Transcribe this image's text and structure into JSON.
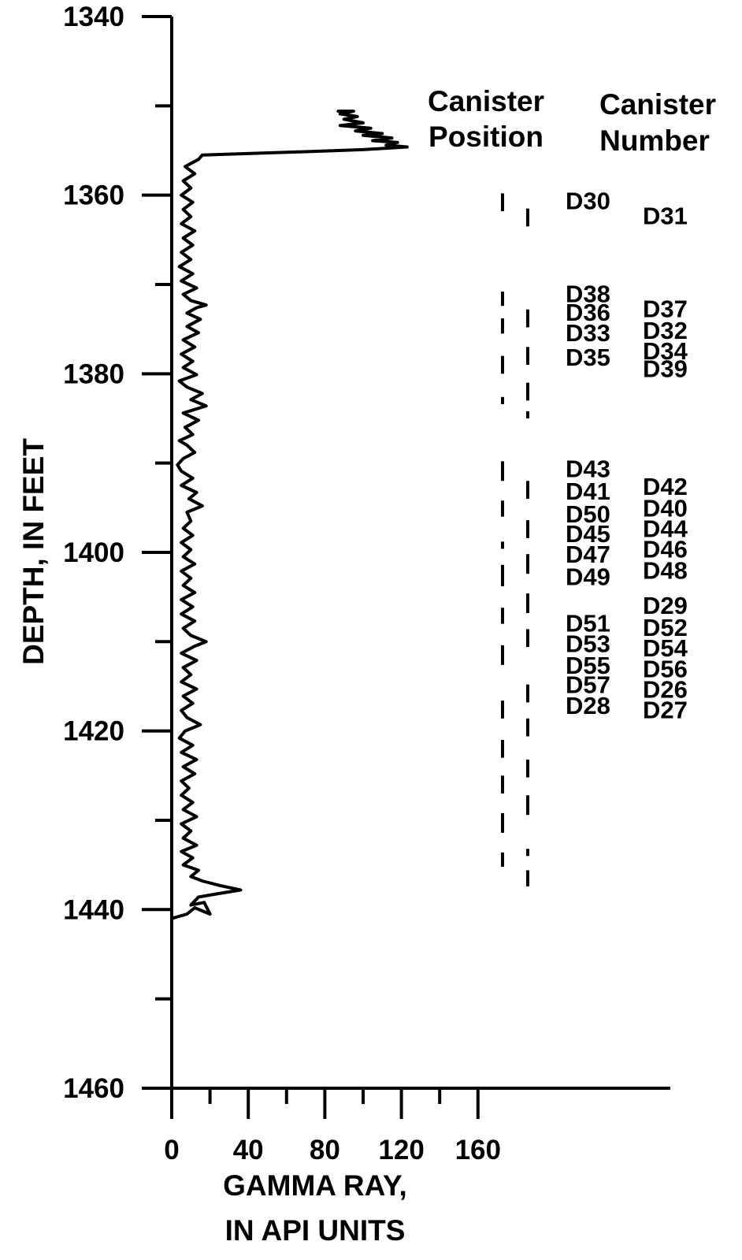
{
  "chart_data": {
    "type": "line",
    "title": "",
    "xlabel_lines": [
      "GAMMA RAY,",
      "IN API UNITS"
    ],
    "ylabel": "DEPTH, IN FEET",
    "column_titles": {
      "position": [
        "Canister",
        "Position"
      ],
      "number": [
        "Canister",
        "Number"
      ]
    },
    "xlim": [
      0,
      260
    ],
    "ylim": [
      1340,
      1460
    ],
    "y_inverted": true,
    "x_tick_labels": [
      0,
      40,
      80,
      120,
      160
    ],
    "x_minor_ticks": [
      20,
      60,
      100,
      140
    ],
    "y_tick_labels": [
      1340,
      1360,
      1380,
      1400,
      1420,
      1440,
      1460
    ],
    "y_minor_ticks": [
      1350,
      1370,
      1390,
      1410,
      1430,
      1450
    ],
    "gamma_ray_series": {
      "name": "",
      "points": [
        [
          0,
          1441
        ],
        [
          8,
          1440.5
        ],
        [
          12,
          1439.8
        ],
        [
          20,
          1440.5
        ],
        [
          17,
          1439.2
        ],
        [
          10,
          1439.5
        ],
        [
          14,
          1438.6
        ],
        [
          22,
          1438.3
        ],
        [
          36,
          1437.8
        ],
        [
          25,
          1437.3
        ],
        [
          16,
          1436.8
        ],
        [
          10,
          1436.3
        ],
        [
          14,
          1435.6
        ],
        [
          6,
          1435
        ],
        [
          11,
          1434.2
        ],
        [
          5,
          1433.5
        ],
        [
          13,
          1432.8
        ],
        [
          6,
          1432
        ],
        [
          10,
          1431.2
        ],
        [
          5,
          1430.4
        ],
        [
          13,
          1429.6
        ],
        [
          6,
          1428.8
        ],
        [
          11,
          1428
        ],
        [
          5,
          1427.2
        ],
        [
          9,
          1426.4
        ],
        [
          5,
          1425.6
        ],
        [
          12,
          1424.8
        ],
        [
          6,
          1424
        ],
        [
          13,
          1423.2
        ],
        [
          5,
          1422.4
        ],
        [
          11,
          1421.6
        ],
        [
          4,
          1420.8
        ],
        [
          7,
          1420
        ],
        [
          15,
          1419.3
        ],
        [
          8,
          1418.5
        ],
        [
          5,
          1417.7
        ],
        [
          11,
          1416.9
        ],
        [
          6,
          1416.1
        ],
        [
          13,
          1415.3
        ],
        [
          5,
          1414.5
        ],
        [
          10,
          1413.7
        ],
        [
          6,
          1412.9
        ],
        [
          13,
          1412.1
        ],
        [
          5,
          1411.3
        ],
        [
          12,
          1410.5
        ],
        [
          18,
          1410
        ],
        [
          10,
          1409.3
        ],
        [
          6,
          1408.5
        ],
        [
          12,
          1407.7
        ],
        [
          5,
          1406.9
        ],
        [
          11,
          1406.1
        ],
        [
          5,
          1405.3
        ],
        [
          12,
          1404.5
        ],
        [
          6,
          1403.7
        ],
        [
          10,
          1402.9
        ],
        [
          5,
          1402.1
        ],
        [
          12,
          1401.3
        ],
        [
          6,
          1400.5
        ],
        [
          10,
          1399.7
        ],
        [
          5,
          1398.9
        ],
        [
          11,
          1398.1
        ],
        [
          6,
          1397.3
        ],
        [
          10,
          1396.5
        ],
        [
          8,
          1395.5
        ],
        [
          16,
          1394.8
        ],
        [
          9,
          1394
        ],
        [
          13,
          1393.3
        ],
        [
          5,
          1392.5
        ],
        [
          11,
          1391.7
        ],
        [
          5,
          1390.9
        ],
        [
          3,
          1390.2
        ],
        [
          6,
          1389.5
        ],
        [
          12,
          1388.8
        ],
        [
          8,
          1388
        ],
        [
          4,
          1387.5
        ],
        [
          11,
          1386.8
        ],
        [
          7,
          1386
        ],
        [
          14,
          1385.2
        ],
        [
          6,
          1384.4
        ],
        [
          18,
          1383.6
        ],
        [
          10,
          1382.9
        ],
        [
          16,
          1382.2
        ],
        [
          8,
          1381.5
        ],
        [
          4,
          1380.8
        ],
        [
          13,
          1380.1
        ],
        [
          6,
          1379.3
        ],
        [
          11,
          1378.6
        ],
        [
          5,
          1377.8
        ],
        [
          12,
          1377
        ],
        [
          6,
          1376.2
        ],
        [
          14,
          1375.4
        ],
        [
          8,
          1374.7
        ],
        [
          15,
          1373.9
        ],
        [
          8,
          1373.2
        ],
        [
          13,
          1372.6
        ],
        [
          18,
          1372.3
        ],
        [
          10,
          1371.8
        ],
        [
          6,
          1371.1
        ],
        [
          13,
          1370.4
        ],
        [
          5,
          1369.6
        ],
        [
          11,
          1368.8
        ],
        [
          4,
          1368
        ],
        [
          10,
          1367.2
        ],
        [
          5,
          1366.4
        ],
        [
          11,
          1365.6
        ],
        [
          6,
          1364.8
        ],
        [
          12,
          1364
        ],
        [
          5,
          1363.2
        ],
        [
          10,
          1362.4
        ],
        [
          6,
          1361.6
        ],
        [
          11,
          1360.8
        ],
        [
          5,
          1360
        ],
        [
          10,
          1359.2
        ],
        [
          6,
          1358.4
        ],
        [
          12,
          1357.6
        ],
        [
          7,
          1356.8
        ],
        [
          14,
          1356
        ],
        [
          16,
          1355.5
        ],
        [
          60,
          1355.2
        ],
        [
          100,
          1354.9
        ],
        [
          123,
          1354.6
        ],
        [
          112,
          1354.4
        ],
        [
          118,
          1354.1
        ],
        [
          105,
          1353.9
        ],
        [
          115,
          1353.6
        ],
        [
          100,
          1353.3
        ],
        [
          110,
          1353.1
        ],
        [
          96,
          1352.8
        ],
        [
          104,
          1352.5
        ],
        [
          88,
          1352.2
        ],
        [
          100,
          1351.9
        ],
        [
          90,
          1351.5
        ],
        [
          97,
          1351.2
        ],
        [
          88,
          1350.9
        ],
        [
          95,
          1350.6
        ],
        [
          87,
          1350.6
        ]
      ]
    },
    "canister_position_left": [
      [
        1359.8,
        1361.8
      ],
      [
        1370.8,
        1372.4
      ],
      [
        1373.8,
        1375.5
      ],
      [
        1378,
        1380
      ],
      [
        1382.6,
        1383.4
      ],
      [
        1389.8,
        1392
      ],
      [
        1394.2,
        1396
      ],
      [
        1398.8,
        1399.6
      ],
      [
        1401.4,
        1403.8
      ],
      [
        1406.2,
        1408
      ],
      [
        1410.4,
        1412.6
      ],
      [
        1416.6,
        1418.6
      ],
      [
        1421,
        1423
      ],
      [
        1425,
        1427
      ],
      [
        1429.2,
        1431.4
      ],
      [
        1433.6,
        1435.2
      ]
    ],
    "canister_position_right": [
      [
        1361.5,
        1363.5
      ],
      [
        1372.8,
        1374.8
      ],
      [
        1377,
        1379
      ],
      [
        1381,
        1383
      ],
      [
        1384.2,
        1385
      ],
      [
        1392,
        1394
      ],
      [
        1396.4,
        1398.4
      ],
      [
        1400.2,
        1402.4
      ],
      [
        1404.6,
        1406.8
      ],
      [
        1408.6,
        1410.6
      ],
      [
        1414.8,
        1416.8
      ],
      [
        1418.6,
        1420.6
      ],
      [
        1423.2,
        1425.2
      ],
      [
        1427.2,
        1429.4
      ],
      [
        1433.2,
        1434
      ],
      [
        1435.6,
        1437.4
      ]
    ],
    "canister_numbers_left": [
      {
        "label": "D30",
        "depth": 1360.6
      },
      {
        "label": "D38",
        "depth": 1371.0
      },
      {
        "label": "D36",
        "depth": 1373.1
      },
      {
        "label": "D33",
        "depth": 1375.4
      },
      {
        "label": "D35",
        "depth": 1378.1
      },
      {
        "label": "D43",
        "depth": 1390.6
      },
      {
        "label": "D41",
        "depth": 1393.1
      },
      {
        "label": "D50",
        "depth": 1395.7
      },
      {
        "label": "D45",
        "depth": 1397.9
      },
      {
        "label": "D47",
        "depth": 1400.2
      },
      {
        "label": "D49",
        "depth": 1402.7
      },
      {
        "label": "D51",
        "depth": 1407.9
      },
      {
        "label": "D53",
        "depth": 1410.2
      },
      {
        "label": "D55",
        "depth": 1412.6
      },
      {
        "label": "D57",
        "depth": 1414.8
      },
      {
        "label": "D28",
        "depth": 1417.1
      }
    ],
    "canister_numbers_right": [
      {
        "label": "D31",
        "depth": 1362.3
      },
      {
        "label": "D37",
        "depth": 1372.7
      },
      {
        "label": "D32",
        "depth": 1375.1
      },
      {
        "label": "D34",
        "depth": 1377.4
      },
      {
        "label": "D39",
        "depth": 1379.4
      },
      {
        "label": "D42",
        "depth": 1392.6
      },
      {
        "label": "D40",
        "depth": 1395.0
      },
      {
        "label": "D44",
        "depth": 1397.3
      },
      {
        "label": "D46",
        "depth": 1399.6
      },
      {
        "label": "D48",
        "depth": 1402.0
      },
      {
        "label": "D29",
        "depth": 1405.9
      },
      {
        "label": "D52",
        "depth": 1408.4
      },
      {
        "label": "D54",
        "depth": 1410.7
      },
      {
        "label": "D56",
        "depth": 1413.0
      },
      {
        "label": "D26",
        "depth": 1415.3
      },
      {
        "label": "D27",
        "depth": 1417.6
      }
    ]
  }
}
